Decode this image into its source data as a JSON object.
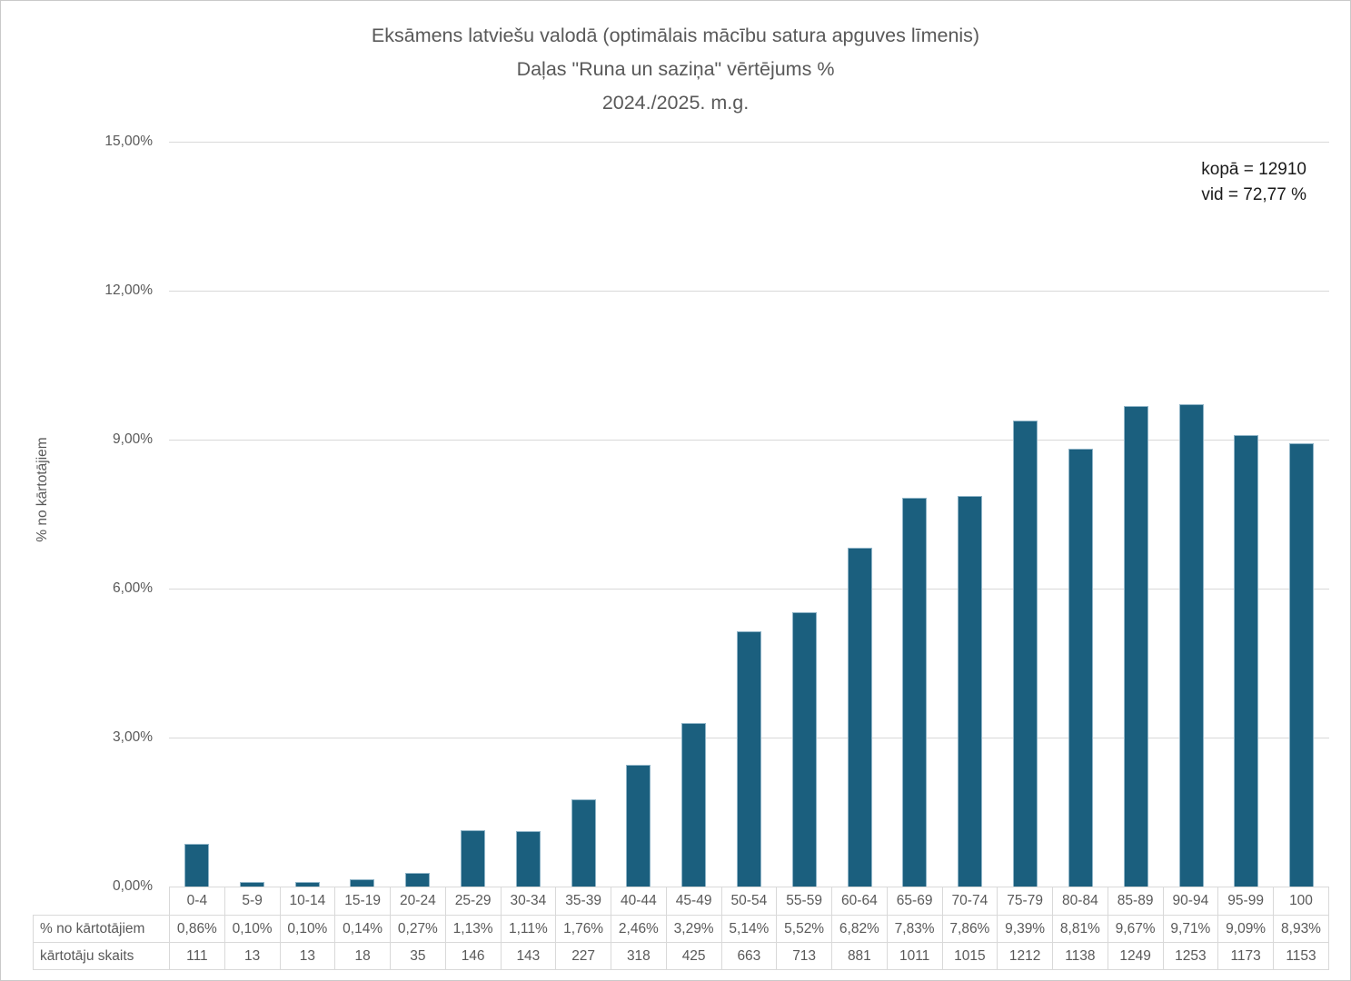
{
  "chart": {
    "title_lines": [
      "Eksāmens latviešu valodā (optimālais mācību satura apguves līmenis)",
      "Daļas \"Runa un saziņa\" vērtējums %",
      "2024./2025. m.g."
    ],
    "annotation": {
      "total": "kopā = 12910",
      "average": "vid = 72,77 %"
    },
    "y_axis_title": "% no kārtotājiem",
    "y_ticks": [
      "15,00%",
      "12,00%",
      "9,00%",
      "6,00%",
      "3,00%",
      "0,00%"
    ]
  },
  "chart_data": {
    "type": "bar",
    "title": "Eksāmens latviešu valodā (optimālais mācību satura apguves līmenis) — Daļas \"Runa un saziņa\" vērtējums % — 2024./2025. m.g.",
    "categories": [
      "0-4",
      "5-9",
      "10-14",
      "15-19",
      "20-24",
      "25-29",
      "30-34",
      "35-39",
      "40-44",
      "45-49",
      "50-54",
      "55-59",
      "60-64",
      "65-69",
      "70-74",
      "75-79",
      "80-84",
      "85-89",
      "90-94",
      "95-99",
      "100"
    ],
    "values": [
      0.86,
      0.1,
      0.1,
      0.14,
      0.27,
      1.13,
      1.11,
      1.76,
      2.46,
      3.29,
      5.14,
      5.52,
      6.82,
      7.83,
      7.86,
      9.39,
      8.81,
      9.67,
      9.71,
      9.09,
      8.93
    ],
    "value_labels": [
      "0,86%",
      "0,10%",
      "0,10%",
      "0,14%",
      "0,27%",
      "1,13%",
      "1,11%",
      "1,76%",
      "2,46%",
      "3,29%",
      "5,14%",
      "5,52%",
      "6,82%",
      "7,83%",
      "7,86%",
      "9,39%",
      "8,81%",
      "9,67%",
      "9,71%",
      "9,09%",
      "8,93%"
    ],
    "counts": [
      111,
      13,
      13,
      18,
      35,
      146,
      143,
      227,
      318,
      425,
      663,
      713,
      881,
      1011,
      1015,
      1212,
      1138,
      1249,
      1253,
      1173,
      1153
    ],
    "xlabel": "",
    "ylabel": "% no kārtotājiem",
    "ylim": [
      0,
      15
    ],
    "ytick_step": 3,
    "ytick_labels": [
      "15,00%",
      "12,00%",
      "9,00%",
      "6,00%",
      "3,00%",
      "0,00%"
    ],
    "grid": true,
    "legend_position": "none",
    "bar_color": "#1b5f7e",
    "annotations": [
      "kopā = 12910",
      "vid = 72,77 %"
    ]
  },
  "table": {
    "percent_row_label": "% no kārtotājiem",
    "count_row_label": "kārtotāju skaits"
  }
}
